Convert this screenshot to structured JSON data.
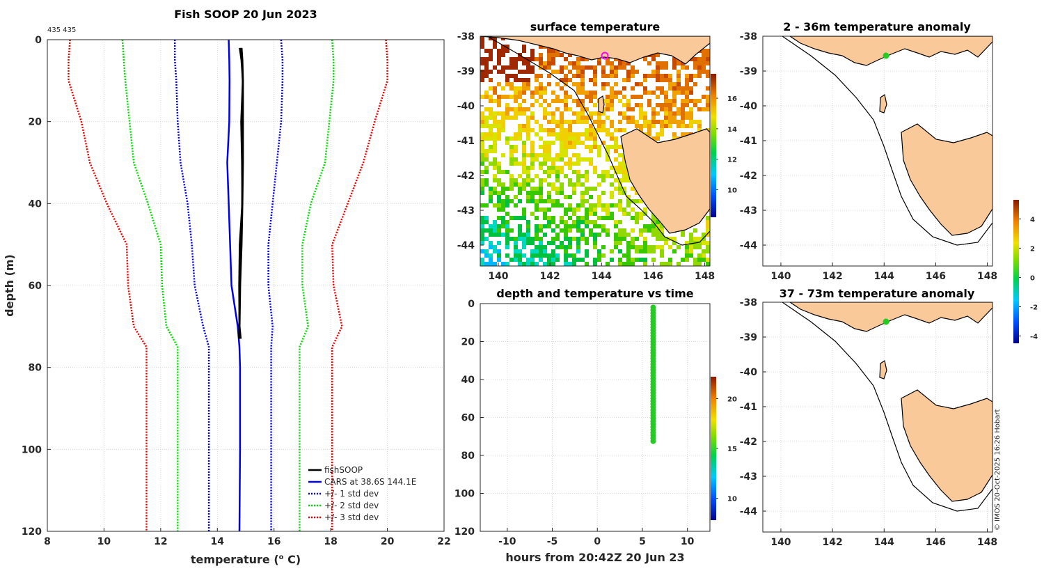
{
  "profile": {
    "title": "Fish SOOP 20 Jun 2023",
    "count_label": "435 435",
    "xlabel": "temperature (",
    "xlabel_sup": "o",
    "xlabel_end": " C)",
    "ylabel": "depth (m)",
    "xlim": [
      8,
      22
    ],
    "ylim": [
      0,
      120
    ],
    "xticks": [
      "8",
      "10",
      "12",
      "14",
      "16",
      "18",
      "20",
      "22"
    ],
    "yticks": [
      "0",
      "20",
      "40",
      "60",
      "80",
      "100",
      "120"
    ],
    "legend": [
      "fishSOOP",
      "CARS at 38.6S 144.1E",
      "+/- 1 std dev",
      "+/- 2 std dev",
      "+/- 3 std dev"
    ],
    "colors": {
      "fishsoop": "#000000",
      "cars": "#0000ee",
      "sd1": "#0000ee",
      "sd2": "#00dd00",
      "sd3": "#ee0000"
    }
  },
  "chart_data": [
    {
      "type": "line",
      "title": "Fish SOOP 20 Jun 2023",
      "xlabel": "temperature (o C)",
      "ylabel": "depth (m)",
      "xlim": [
        8,
        22
      ],
      "ylim": [
        120,
        0
      ],
      "series": [
        {
          "name": "fishSOOP",
          "depth": [
            2,
            5,
            10,
            20,
            30,
            40,
            50,
            60,
            70,
            73
          ],
          "temperature": [
            14.85,
            14.88,
            14.9,
            14.9,
            14.9,
            14.88,
            14.85,
            14.8,
            14.78,
            14.82
          ]
        },
        {
          "name": "CARS at 38.6S 144.1E",
          "depth": [
            0,
            5,
            10,
            20,
            30,
            40,
            50,
            60,
            70,
            75,
            80,
            100,
            120
          ],
          "temperature": [
            14.4,
            14.42,
            14.43,
            14.42,
            14.35,
            14.4,
            14.45,
            14.5,
            14.72,
            14.78,
            14.8,
            14.8,
            14.78
          ]
        },
        {
          "name": "+/- 1 std dev low",
          "depth": [
            0,
            5,
            10,
            20,
            30,
            40,
            50,
            60,
            70,
            75,
            80,
            100,
            120
          ],
          "temperature": [
            12.5,
            12.5,
            12.55,
            12.6,
            12.7,
            12.95,
            13.1,
            13.2,
            13.5,
            13.7,
            13.7,
            13.7,
            13.7
          ]
        },
        {
          "name": "+/- 1 std dev high",
          "depth": [
            0,
            5,
            10,
            20,
            30,
            40,
            50,
            60,
            70,
            75,
            80,
            100,
            120
          ],
          "temperature": [
            16.25,
            16.3,
            16.3,
            16.25,
            16.1,
            15.95,
            15.8,
            15.8,
            15.95,
            15.9,
            15.9,
            15.9,
            15.9
          ]
        },
        {
          "name": "+/- 2 std dev low",
          "depth": [
            0,
            5,
            10,
            20,
            30,
            40,
            50,
            60,
            70,
            75,
            80,
            100,
            120
          ],
          "temperature": [
            10.65,
            10.7,
            10.75,
            10.9,
            11.05,
            11.55,
            12.0,
            12.05,
            12.2,
            12.6,
            12.6,
            12.6,
            12.6
          ]
        },
        {
          "name": "+/- 2 std dev high",
          "depth": [
            0,
            5,
            10,
            20,
            30,
            40,
            50,
            60,
            70,
            75,
            80,
            100,
            120
          ],
          "temperature": [
            18.05,
            18.1,
            18.1,
            17.95,
            17.8,
            17.3,
            17.0,
            17.0,
            17.2,
            16.9,
            16.9,
            16.9,
            16.9
          ]
        },
        {
          "name": "+/- 3 std dev low",
          "depth": [
            0,
            5,
            10,
            20,
            30,
            40,
            50,
            60,
            70,
            75,
            80,
            100,
            120
          ],
          "temperature": [
            8.8,
            8.75,
            8.75,
            9.2,
            9.5,
            10.1,
            10.8,
            10.85,
            11.05,
            11.5,
            11.5,
            11.5,
            11.5
          ]
        },
        {
          "name": "+/- 3 std dev high",
          "depth": [
            0,
            5,
            10,
            20,
            30,
            40,
            50,
            60,
            70,
            75,
            80,
            100,
            120
          ],
          "temperature": [
            19.95,
            20.0,
            20.0,
            19.55,
            19.15,
            18.6,
            18.05,
            18.1,
            18.4,
            18.05,
            18.05,
            18.05,
            18.05
          ]
        }
      ]
    },
    {
      "type": "heatmap",
      "title": "surface temperature",
      "xticks": [
        "140",
        "142",
        "144",
        "146",
        "148"
      ],
      "yticks": [
        "-38",
        "-39",
        "-40",
        "-41",
        "-42",
        "-43",
        "-44"
      ],
      "colorbar_ticks": [
        "10",
        "12",
        "14",
        "16"
      ],
      "marker": {
        "lon": 144.1,
        "lat": -38.6
      }
    },
    {
      "type": "scatter",
      "title": "depth and temperature vs time",
      "xlabel": "hours from 20:42Z 20 Jun 23",
      "xticks": [
        "-10",
        "-5",
        "0",
        "5",
        "10"
      ],
      "yticks": [
        "0",
        "20",
        "40",
        "60",
        "80",
        "100",
        "120"
      ],
      "colorbar_ticks": [
        "10",
        "15",
        "20"
      ],
      "x_hours": 6.2,
      "depth_range": [
        2,
        73
      ]
    },
    {
      "type": "heatmap",
      "title": "2 - 36m temperature anomaly",
      "xticks": [
        "140",
        "142",
        "144",
        "146",
        "148"
      ],
      "yticks": [
        "-38",
        "-39",
        "-40",
        "-41",
        "-42",
        "-43",
        "-44"
      ]
    },
    {
      "type": "heatmap",
      "title": "37 - 73m temperature anomaly",
      "xticks": [
        "140",
        "142",
        "144",
        "146",
        "148"
      ],
      "yticks": [
        "-38",
        "-39",
        "-40",
        "-41",
        "-42",
        "-43",
        "-44"
      ],
      "colorbar_ticks": [
        "-4",
        "-2",
        "0",
        "2",
        "4"
      ]
    }
  ],
  "surface": {
    "title": "surface temperature",
    "xticks": [
      "140",
      "142",
      "144",
      "146",
      "148"
    ],
    "yticks": [
      "-38",
      "-39",
      "-40",
      "-41",
      "-42",
      "-43",
      "-44"
    ],
    "cbar_ticks": [
      "10",
      "12",
      "14",
      "16"
    ]
  },
  "timeplot": {
    "title": "depth and temperature vs time",
    "xlabel": "hours from 20:42Z 20 Jun 23",
    "xticks": [
      "-10",
      "-5",
      "0",
      "5",
      "10"
    ],
    "yticks": [
      "0",
      "20",
      "40",
      "60",
      "80",
      "100",
      "120"
    ],
    "cbar_ticks": [
      "10",
      "15",
      "20"
    ]
  },
  "anom1": {
    "title": "2 - 36m temperature anomaly",
    "xticks": [
      "140",
      "142",
      "144",
      "146",
      "148"
    ],
    "yticks": [
      "-38",
      "-39",
      "-40",
      "-41",
      "-42",
      "-43",
      "-44"
    ]
  },
  "anom2": {
    "title": "37 - 73m temperature anomaly",
    "xticks": [
      "140",
      "142",
      "144",
      "146",
      "148"
    ],
    "yticks": [
      "-38",
      "-39",
      "-40",
      "-41",
      "-42",
      "-43",
      "-44"
    ],
    "cbar_ticks": [
      "-4",
      "-2",
      "0",
      "2",
      "4"
    ]
  },
  "credit": "© IMOS 20-Oct-2025 16:26 Hobart"
}
